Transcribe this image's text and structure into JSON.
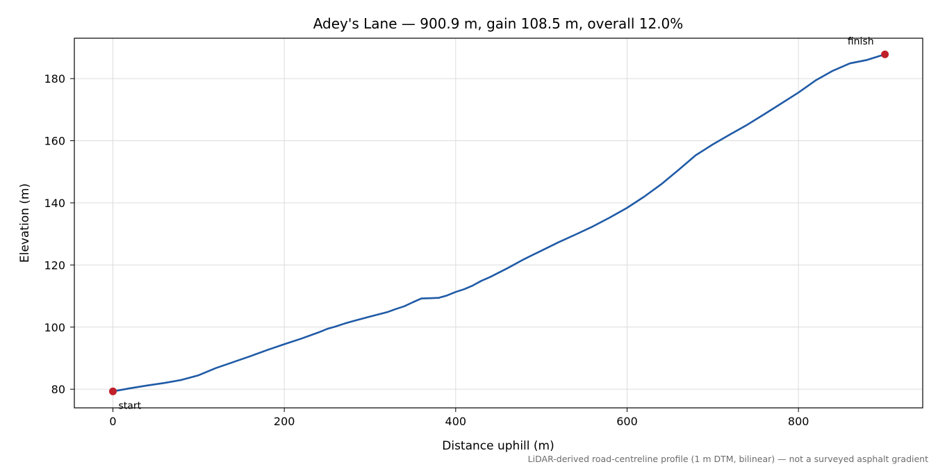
{
  "chart_data": {
    "type": "line",
    "title": "Adey's Lane — 900.9 m, gain 108.5 m, overall 12.0%",
    "xlabel": "Distance uphill (m)",
    "ylabel": "Elevation (m)",
    "xlim": [
      -45,
      945
    ],
    "ylim": [
      74,
      193
    ],
    "xticks": [
      0,
      200,
      400,
      600,
      800
    ],
    "yticks": [
      80,
      100,
      120,
      140,
      160,
      180
    ],
    "grid": true,
    "line_color": "#1f5aa6",
    "marker_color": "#c0202a",
    "series": [
      {
        "x": [
          0,
          20,
          40,
          60,
          80,
          100,
          120,
          140,
          160,
          180,
          200,
          220,
          240,
          250,
          260,
          270,
          280,
          300,
          320,
          330,
          340,
          350,
          360,
          370,
          380,
          390,
          400,
          410,
          420,
          430,
          440,
          460,
          480,
          500,
          520,
          540,
          560,
          580,
          600,
          620,
          640,
          660,
          680,
          700,
          720,
          740,
          760,
          780,
          800,
          820,
          840,
          860,
          880,
          900.9
        ],
        "y": [
          79.3,
          80.3,
          81.2,
          82.0,
          83.0,
          84.5,
          86.8,
          88.7,
          90.6,
          92.6,
          94.5,
          96.3,
          98.3,
          99.4,
          100.2,
          101.1,
          101.9,
          103.4,
          104.8,
          105.8,
          106.7,
          108.0,
          109.2,
          109.3,
          109.4,
          110.2,
          111.3,
          112.2,
          113.4,
          114.9,
          116.1,
          118.9,
          121.9,
          124.6,
          127.3,
          129.8,
          132.4,
          135.3,
          138.4,
          142.0,
          146.0,
          150.6,
          155.3,
          158.8,
          162.0,
          165.1,
          168.5,
          172.0,
          175.5,
          179.4,
          182.5,
          184.9,
          186.0,
          187.8
        ]
      }
    ],
    "annotations": [
      {
        "text": "start",
        "x": 0,
        "y": 79.3
      },
      {
        "text": "finish",
        "x": 900.9,
        "y": 187.8
      }
    ],
    "footnote": "LiDAR-derived road-centreline profile (1 m DTM, bilinear) — not a surveyed asphalt gradient"
  }
}
